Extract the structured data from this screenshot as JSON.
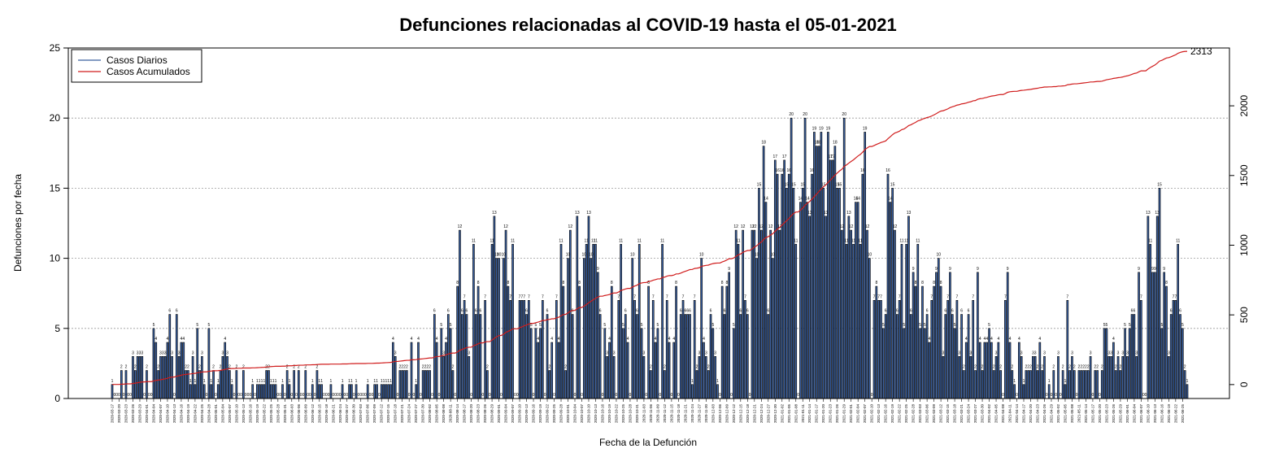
{
  "chart_data": {
    "type": "bar",
    "title": "Defunciones relacionadas al COVID-19 hasta el 05-01-2021",
    "xlabel": "Fecha de la Defunción",
    "ylabel": "Defunciones por fecha",
    "ylim": [
      0,
      25
    ],
    "y_ticks": [
      0,
      5,
      10,
      15,
      20,
      25
    ],
    "y2lim": [
      -100,
      2415
    ],
    "y2_ticks": [
      0,
      500,
      1000,
      1500,
      2000
    ],
    "grid": "horizontal dotted",
    "legend_position": "top-left",
    "start_date": "2020-03-17",
    "x_tick_every": 3,
    "final_cumulative_label": "2313",
    "colors": {
      "daily": "#3a5f9e",
      "daily_edge": "#000000",
      "cumulative": "#d01c1c",
      "grid": "#9a9a9a"
    },
    "series": [
      {
        "name": "Casos Diarios",
        "type": "bar",
        "values": [
          1,
          0,
          0,
          0,
          2,
          0,
          2,
          0,
          0,
          3,
          2,
          3,
          3,
          3,
          0,
          2,
          0,
          0,
          5,
          4,
          2,
          3,
          3,
          3,
          4,
          6,
          3,
          0,
          6,
          3,
          4,
          4,
          2,
          2,
          1,
          3,
          1,
          5,
          2,
          3,
          1,
          0,
          5,
          1,
          2,
          0,
          1,
          2,
          3,
          4,
          3,
          2,
          1,
          0,
          2,
          0,
          0,
          2,
          0,
          0,
          0,
          1,
          0,
          1,
          1,
          1,
          1,
          2,
          2,
          1,
          1,
          1,
          0,
          0,
          1,
          0,
          2,
          1,
          0,
          2,
          0,
          2,
          0,
          0,
          2,
          0,
          0,
          1,
          0,
          2,
          1,
          1,
          0,
          0,
          0,
          1,
          0,
          0,
          0,
          0,
          1,
          0,
          0,
          1,
          1,
          0,
          1,
          0,
          0,
          0,
          0,
          1,
          0,
          0,
          1,
          1,
          0,
          1,
          1,
          1,
          1,
          1,
          4,
          3,
          0,
          2,
          2,
          2,
          2,
          0,
          4,
          0,
          1,
          4,
          0,
          2,
          2,
          2,
          2,
          0,
          6,
          4,
          0,
          5,
          3,
          4,
          6,
          5,
          2,
          0,
          8,
          12,
          6,
          7,
          6,
          3,
          0,
          11,
          6,
          8,
          6,
          0,
          7,
          2,
          0,
          11,
          13,
          10,
          10,
          0,
          10,
          12,
          8,
          7,
          11,
          0,
          0,
          7,
          7,
          7,
          6,
          7,
          5,
          0,
          5,
          4,
          5,
          7,
          0,
          6,
          2,
          4,
          0,
          7,
          4,
          11,
          8,
          2,
          10,
          12,
          6,
          0,
          13,
          8,
          0,
          10,
          11,
          13,
          10,
          11,
          11,
          9,
          6,
          0,
          5,
          3,
          4,
          8,
          3,
          0,
          7,
          11,
          5,
          6,
          4,
          0,
          10,
          7,
          6,
          11,
          5,
          3,
          0,
          8,
          2,
          7,
          4,
          5,
          0,
          11,
          2,
          7,
          4,
          0,
          4,
          8,
          0,
          6,
          7,
          6,
          6,
          6,
          1,
          7,
          2,
          3,
          10,
          4,
          3,
          2,
          6,
          5,
          3,
          1,
          0,
          8,
          6,
          8,
          9,
          0,
          5,
          12,
          11,
          6,
          12,
          7,
          6,
          0,
          12,
          12,
          10,
          15,
          12,
          18,
          14,
          6,
          12,
          10,
          17,
          16,
          12,
          16,
          17,
          15,
          16,
          20,
          15,
          11,
          0,
          14,
          15,
          20,
          14,
          13,
          16,
          19,
          18,
          18,
          19,
          15,
          13,
          19,
          17,
          17,
          18,
          15,
          15,
          12,
          20,
          11,
          13,
          12,
          11,
          14,
          14,
          11,
          16,
          19,
          12,
          10,
          0,
          7,
          8,
          7,
          7,
          5,
          6,
          16,
          14,
          15,
          12,
          6,
          7,
          11,
          5,
          11,
          13,
          6,
          9,
          8,
          11,
          5,
          8,
          5,
          6,
          4,
          7,
          8,
          9,
          10,
          8,
          3,
          6,
          7,
          9,
          6,
          5,
          7,
          3,
          6,
          2,
          4,
          6,
          3,
          7,
          2,
          9,
          4,
          2,
          4,
          4,
          5,
          4,
          2,
          3,
          4,
          2,
          0,
          7,
          9,
          4,
          2,
          1,
          0,
          4,
          3,
          1,
          2,
          2,
          2,
          3,
          3,
          2,
          4,
          2,
          3,
          0,
          1,
          0,
          2,
          0,
          3,
          0,
          2,
          1,
          7,
          2,
          3,
          2,
          0,
          2,
          2,
          2,
          2,
          2,
          3,
          0,
          2,
          2,
          0,
          2,
          5,
          5,
          3,
          3,
          4,
          2,
          3,
          2,
          3,
          5,
          3,
          5,
          6,
          6,
          3,
          9,
          7,
          0,
          0,
          13,
          11,
          9,
          9,
          13,
          15,
          5,
          9,
          8,
          3,
          6,
          7,
          7,
          11,
          6,
          5,
          2,
          1
        ]
      },
      {
        "name": "Casos Acumulados",
        "type": "line",
        "axis": "right"
      }
    ]
  }
}
